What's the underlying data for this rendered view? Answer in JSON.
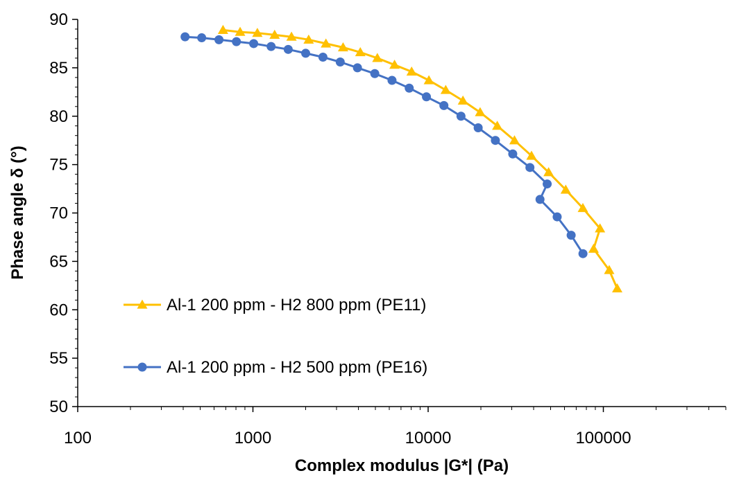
{
  "chart_data": {
    "type": "scatter",
    "xlabel": "Complex modulus |G*| (Pa)",
    "ylabel": "Phase angle δ (°)",
    "x_scale": "log",
    "xlim": [
      100,
      500000
    ],
    "ylim": [
      50,
      90
    ],
    "x_ticks": [
      100,
      1000,
      10000,
      100000
    ],
    "x_tick_labels": [
      "100",
      "1000",
      "10000",
      "100000"
    ],
    "y_ticks": [
      50,
      55,
      60,
      65,
      70,
      75,
      80,
      85,
      90
    ],
    "y_tick_labels": [
      "50",
      "55",
      "60",
      "65",
      "70",
      "75",
      "80",
      "85",
      "90"
    ],
    "grid": false,
    "legend_position": "left, inside plot area",
    "series": [
      {
        "name": "Al-1 200 ppm - H2 800 ppm (PE11)",
        "color": "#FFC000",
        "marker": "triangle",
        "points": [
          [
            675,
            88.9
          ],
          [
            845,
            88.7
          ],
          [
            1060,
            88.6
          ],
          [
            1330,
            88.4
          ],
          [
            1660,
            88.2
          ],
          [
            2080,
            87.9
          ],
          [
            2610,
            87.5
          ],
          [
            3270,
            87.1
          ],
          [
            4100,
            86.6
          ],
          [
            5130,
            86.0
          ],
          [
            6430,
            85.3
          ],
          [
            8050,
            84.6
          ],
          [
            10100,
            83.7
          ],
          [
            12600,
            82.7
          ],
          [
            15800,
            81.6
          ],
          [
            19800,
            80.4
          ],
          [
            24800,
            79.0
          ],
          [
            31100,
            77.5
          ],
          [
            38900,
            75.9
          ],
          [
            48700,
            74.2
          ],
          [
            61000,
            72.4
          ],
          [
            76400,
            70.5
          ],
          [
            95700,
            68.4
          ],
          [
            88000,
            66.3
          ],
          [
            108000,
            64.1
          ],
          [
            120000,
            62.2
          ]
        ]
      },
      {
        "name": "Al-1 200 ppm - H2 500 ppm (PE16)",
        "color": "#4472C4",
        "marker": "circle",
        "points": [
          [
            410,
            88.2
          ],
          [
            510,
            88.1
          ],
          [
            640,
            87.9
          ],
          [
            805,
            87.7
          ],
          [
            1010,
            87.5
          ],
          [
            1270,
            87.2
          ],
          [
            1590,
            86.9
          ],
          [
            2000,
            86.5
          ],
          [
            2510,
            86.1
          ],
          [
            3150,
            85.6
          ],
          [
            3950,
            85.0
          ],
          [
            4960,
            84.4
          ],
          [
            6220,
            83.7
          ],
          [
            7800,
            82.9
          ],
          [
            9780,
            82.0
          ],
          [
            12300,
            81.1
          ],
          [
            15400,
            80.0
          ],
          [
            19300,
            78.8
          ],
          [
            24200,
            77.5
          ],
          [
            30400,
            76.1
          ],
          [
            38100,
            74.7
          ],
          [
            47800,
            73.0
          ],
          [
            43500,
            71.4
          ],
          [
            54500,
            69.6
          ],
          [
            65500,
            67.7
          ],
          [
            76500,
            65.8
          ]
        ]
      }
    ]
  }
}
